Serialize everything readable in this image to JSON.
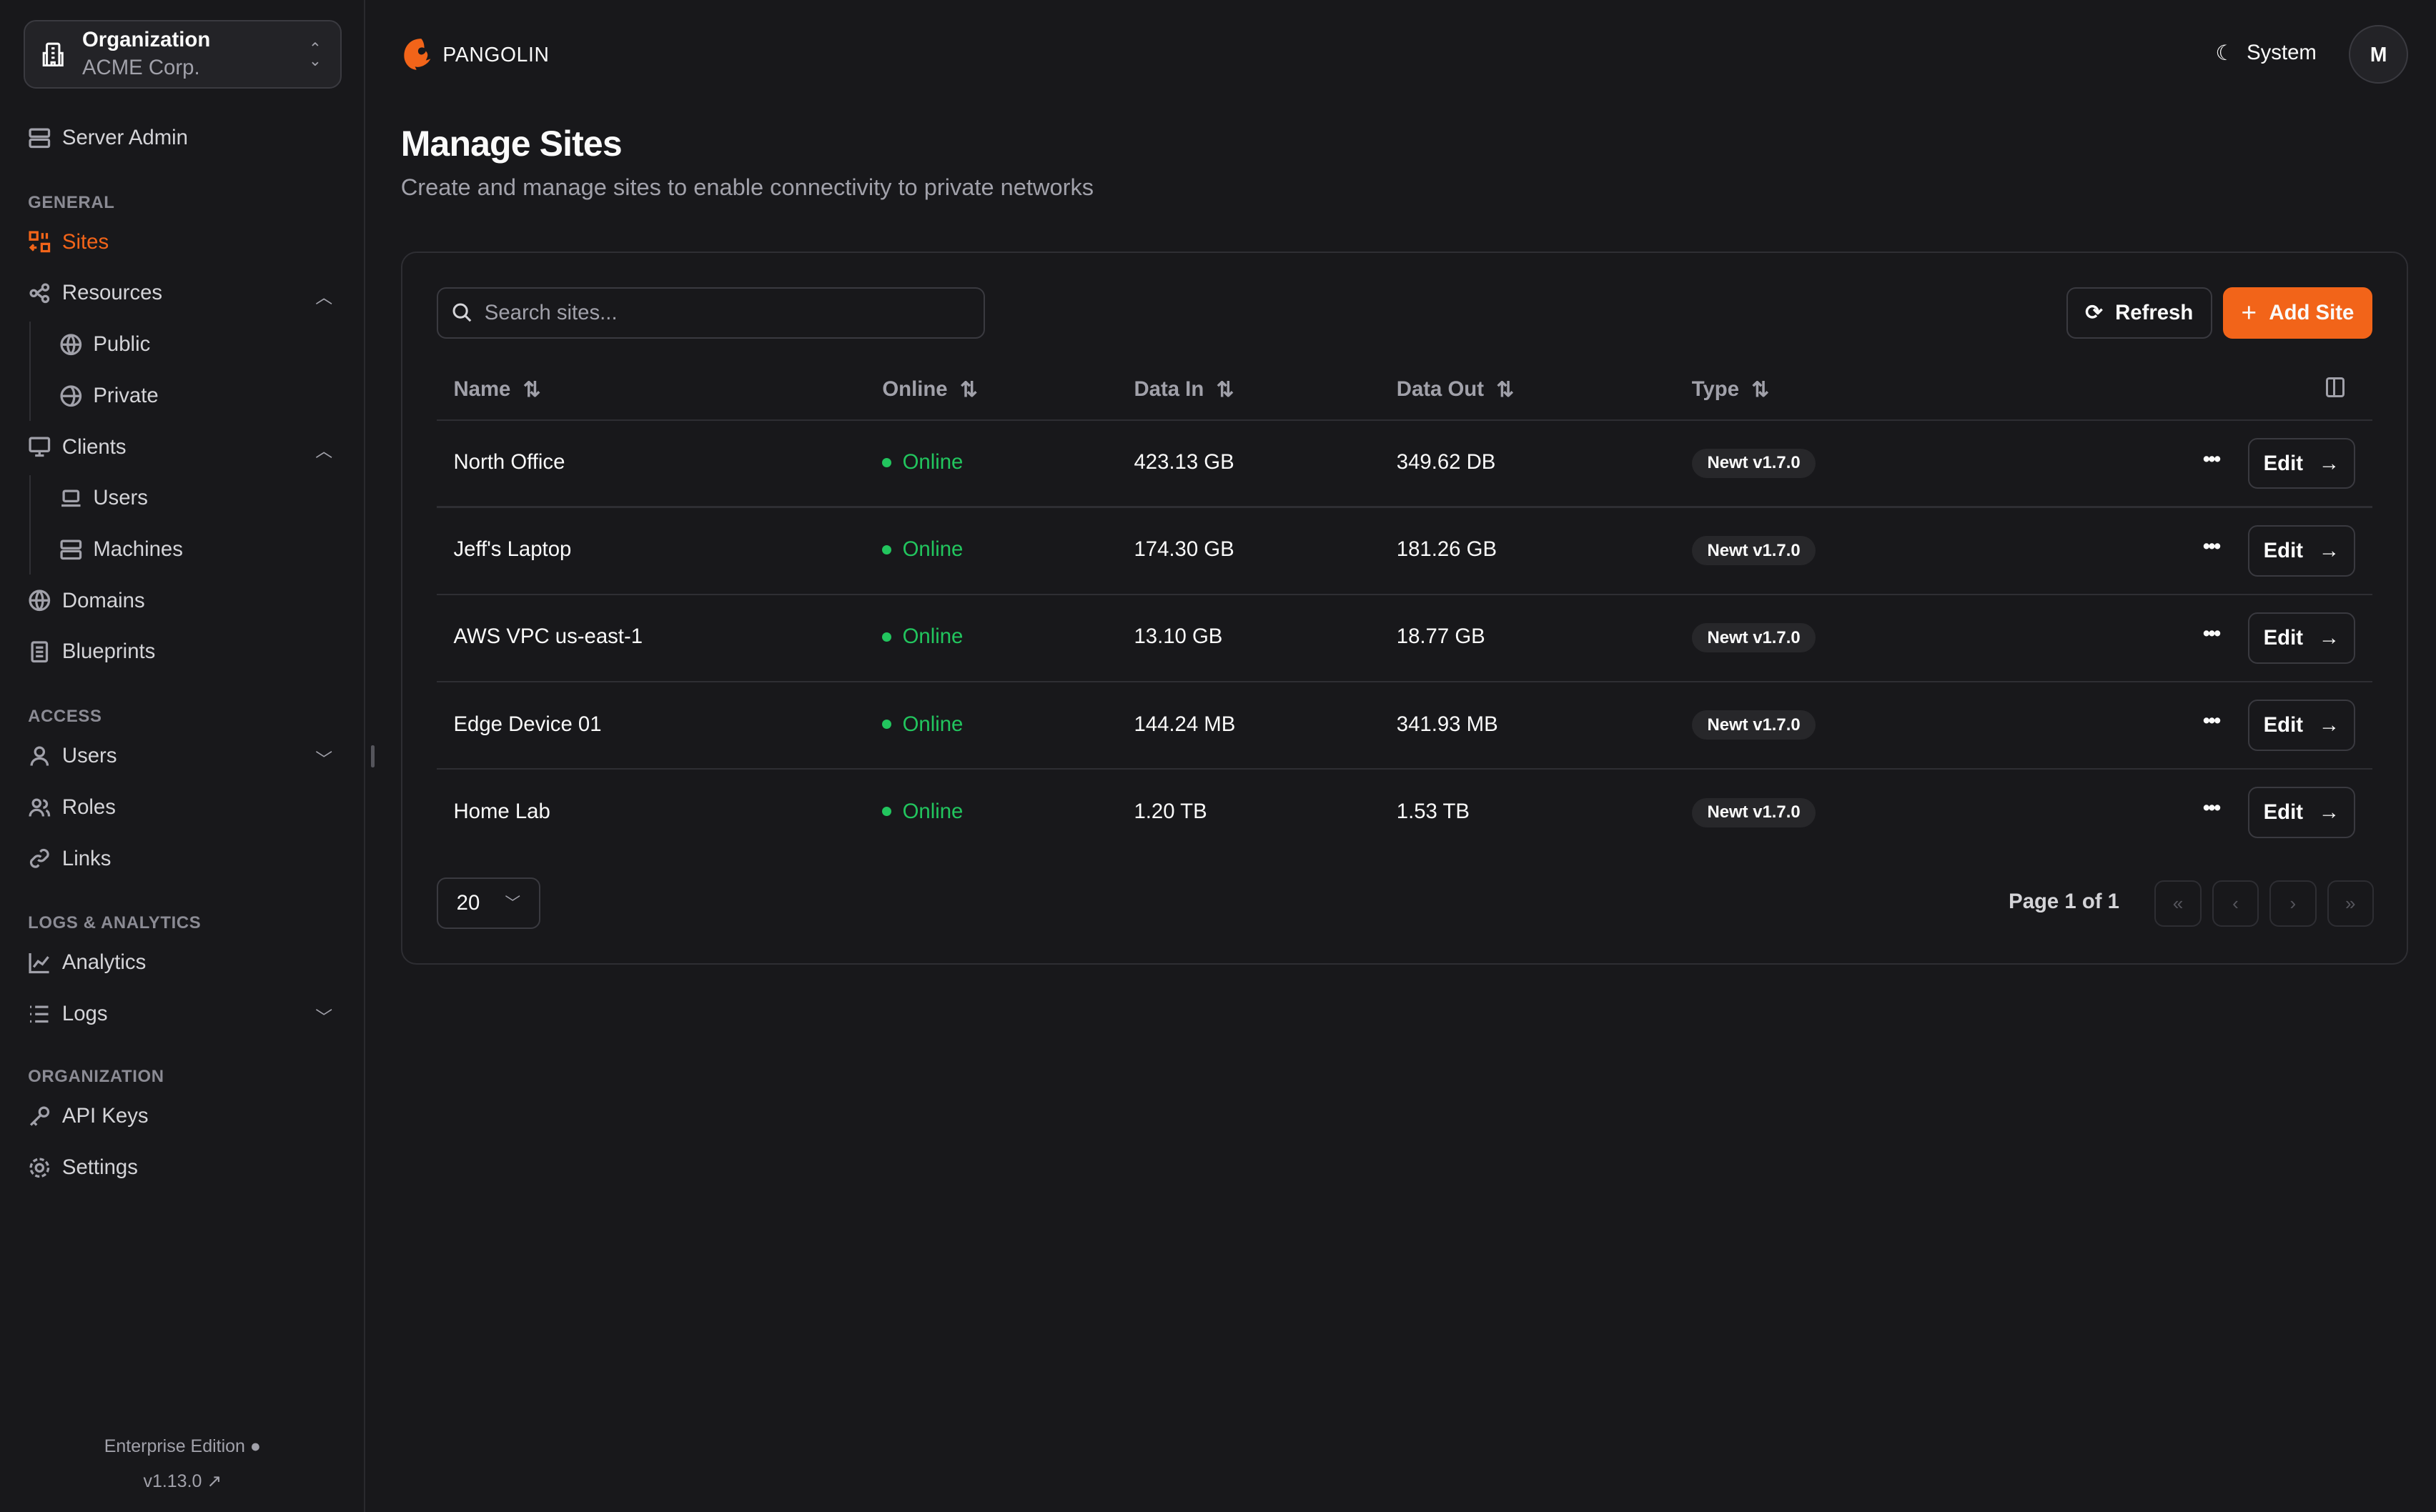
{
  "org": {
    "label": "Organization",
    "name": "ACME Corp."
  },
  "sidebar": {
    "server_admin": "Server Admin",
    "sections": [
      "GENERAL",
      "ACCESS",
      "LOGS & ANALYTICS",
      "ORGANIZATION"
    ],
    "items": {
      "sites": "Sites",
      "resources": "Resources",
      "public": "Public",
      "private": "Private",
      "clients": "Clients",
      "users_c": "Users",
      "machines": "Machines",
      "domains": "Domains",
      "blueprints": "Blueprints",
      "users": "Users",
      "roles": "Roles",
      "links": "Links",
      "analytics": "Analytics",
      "logs": "Logs",
      "api_keys": "API Keys",
      "settings": "Settings"
    },
    "edition": "Enterprise Edition",
    "version": "v1.13.0"
  },
  "header": {
    "brand": "PANGOLIN",
    "theme": "System",
    "avatar": "M"
  },
  "page": {
    "title": "Manage Sites",
    "subtitle": "Create and manage sites to enable connectivity to private networks"
  },
  "toolbar": {
    "search_placeholder": "Search sites...",
    "refresh": "Refresh",
    "add": "Add Site"
  },
  "table": {
    "columns": [
      "Name",
      "Online",
      "Data In",
      "Data Out",
      "Type"
    ],
    "rows": [
      {
        "name": "North Office",
        "status": "Online",
        "data_in": "423.13 GB",
        "data_out": "349.62 DB",
        "type": "Newt v1.7.0",
        "action": "Edit"
      },
      {
        "name": "Jeff's Laptop",
        "status": "Online",
        "data_in": "174.30 GB",
        "data_out": "181.26 GB",
        "type": "Newt v1.7.0",
        "action": "Edit"
      },
      {
        "name": "AWS VPC us-east-1",
        "status": "Online",
        "data_in": "13.10 GB",
        "data_out": "18.77 GB",
        "type": "Newt v1.7.0",
        "action": "Edit"
      },
      {
        "name": "Edge Device 01",
        "status": "Online",
        "data_in": "144.24 MB",
        "data_out": "341.93 MB",
        "type": "Newt v1.7.0",
        "action": "Edit"
      },
      {
        "name": "Home Lab",
        "status": "Online",
        "data_in": "1.20 TB",
        "data_out": "1.53 TB",
        "type": "Newt v1.7.0",
        "action": "Edit"
      }
    ]
  },
  "pagination": {
    "page_size": "20",
    "info": "Page 1 of 1"
  },
  "colors": {
    "accent": "#f26419",
    "online": "#22c55e",
    "background": "#18181b"
  }
}
